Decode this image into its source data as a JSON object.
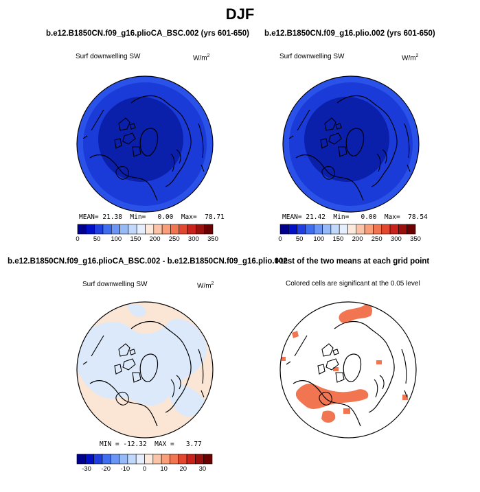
{
  "page": {
    "title": "DJF"
  },
  "panels": [
    {
      "id": "p1",
      "title": "b.e12.B1850CN.f09_g16.plioCA_BSC.002 (yrs 601-650)",
      "subtitle": "Surf downwelling SW",
      "units": "W/m",
      "units_sup": "2",
      "stats": [
        {
          "label": "MEAN=",
          "value": "21.38"
        },
        {
          "label": "Min=",
          "value": "0.00"
        },
        {
          "label": "Max=",
          "value": "78.71"
        }
      ]
    },
    {
      "id": "p2",
      "title": "b.e12.B1850CN.f09_g16.plio.002 (yrs 601-650)",
      "subtitle": "Surf downwelling SW",
      "units": "W/m",
      "units_sup": "2",
      "stats": [
        {
          "label": "MEAN=",
          "value": "21.42"
        },
        {
          "label": "Min=",
          "value": "0.00"
        },
        {
          "label": "Max=",
          "value": "78.54"
        }
      ]
    },
    {
      "id": "p3",
      "title": "b.e12.B1850CN.f09_g16.plioCA_BSC.002 - b.e12.B1850CN.f09_g16.plio.002",
      "subtitle": "Surf downwelling SW",
      "units": "W/m",
      "units_sup": "2",
      "stats": [
        {
          "label": "MIN =",
          "value": "-12.32"
        },
        {
          "label": "MAX =",
          "value": "3.77"
        }
      ]
    },
    {
      "id": "p4",
      "title": "t-test of the two means at each grid point",
      "subtitle": "Colored cells are significant at the 0.05 level",
      "units": "",
      "units_sup": "",
      "stats": []
    }
  ],
  "chart_data": [
    {
      "type": "heatmap",
      "panel": "p1",
      "projection": "north-polar-stereographic",
      "colorbar": {
        "ticks": [
          "0",
          "50",
          "100",
          "150",
          "200",
          "250",
          "300",
          "350"
        ],
        "range": [
          0,
          350
        ],
        "colors": [
          "#00008f",
          "#0010c8",
          "#1f3fe0",
          "#3f6ef0",
          "#6b95f5",
          "#96baf8",
          "#c0d8fb",
          "#e4eefd",
          "#fde8dc",
          "#fbc4a8",
          "#f89e78",
          "#f27552",
          "#e4472f",
          "#c8221b",
          "#99100c",
          "#6a0000"
        ]
      },
      "field_levels": [
        {
          "value": 10,
          "color": "#0a1faa"
        },
        {
          "value": 30,
          "color": "#1a3bd8"
        },
        {
          "value": 50,
          "color": "#2a52e8"
        }
      ]
    },
    {
      "type": "heatmap",
      "panel": "p2",
      "projection": "north-polar-stereographic",
      "colorbar": {
        "ticks": [
          "0",
          "50",
          "100",
          "150",
          "200",
          "250",
          "300",
          "350"
        ],
        "range": [
          0,
          350
        ]
      },
      "field_levels": [
        {
          "value": 10,
          "color": "#0a1faa"
        },
        {
          "value": 30,
          "color": "#1a3bd8"
        },
        {
          "value": 50,
          "color": "#2a52e8"
        }
      ]
    },
    {
      "type": "heatmap",
      "panel": "p3",
      "projection": "north-polar-stereographic",
      "colorbar": {
        "ticks": [
          "-30",
          "-20",
          "-10",
          "0",
          "10",
          "20",
          "30"
        ],
        "range": [
          -35,
          35
        ],
        "colors": [
          "#00008f",
          "#0010c8",
          "#1f3fe0",
          "#3f6ef0",
          "#6b95f5",
          "#96baf8",
          "#c0d8fb",
          "#e4eefd",
          "#fde8dc",
          "#fbc4a8",
          "#f89e78",
          "#f27552",
          "#e4472f",
          "#c8221b",
          "#99100c",
          "#6a0000"
        ]
      },
      "field_levels": [
        {
          "value": -2.5,
          "color": "#dce9fb"
        },
        {
          "value": 2.5,
          "color": "#fbe6d6"
        }
      ]
    },
    {
      "type": "heatmap",
      "panel": "p4",
      "projection": "north-polar-stereographic",
      "significant_color": "#f27552",
      "background": "#ffffff"
    }
  ]
}
